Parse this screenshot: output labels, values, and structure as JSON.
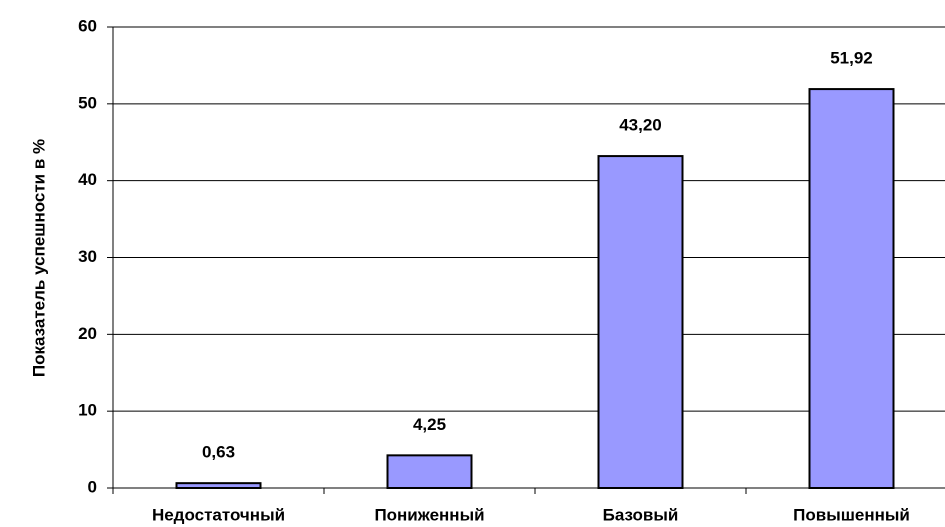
{
  "chart_data": {
    "type": "bar",
    "y_label": "Показатель успешности в %",
    "categories": [
      "Недостаточный",
      "Пониженный",
      "Базовый",
      "Повышенный"
    ],
    "values": [
      0.63,
      4.25,
      43.2,
      51.92
    ],
    "value_labels": [
      "0,63",
      "4,25",
      "43,20",
      "51,92"
    ],
    "color": "#9999ff",
    "ylim": [
      0,
      60
    ],
    "yticks": [
      0,
      10,
      20,
      30,
      40,
      50,
      60
    ],
    "grid": true
  }
}
